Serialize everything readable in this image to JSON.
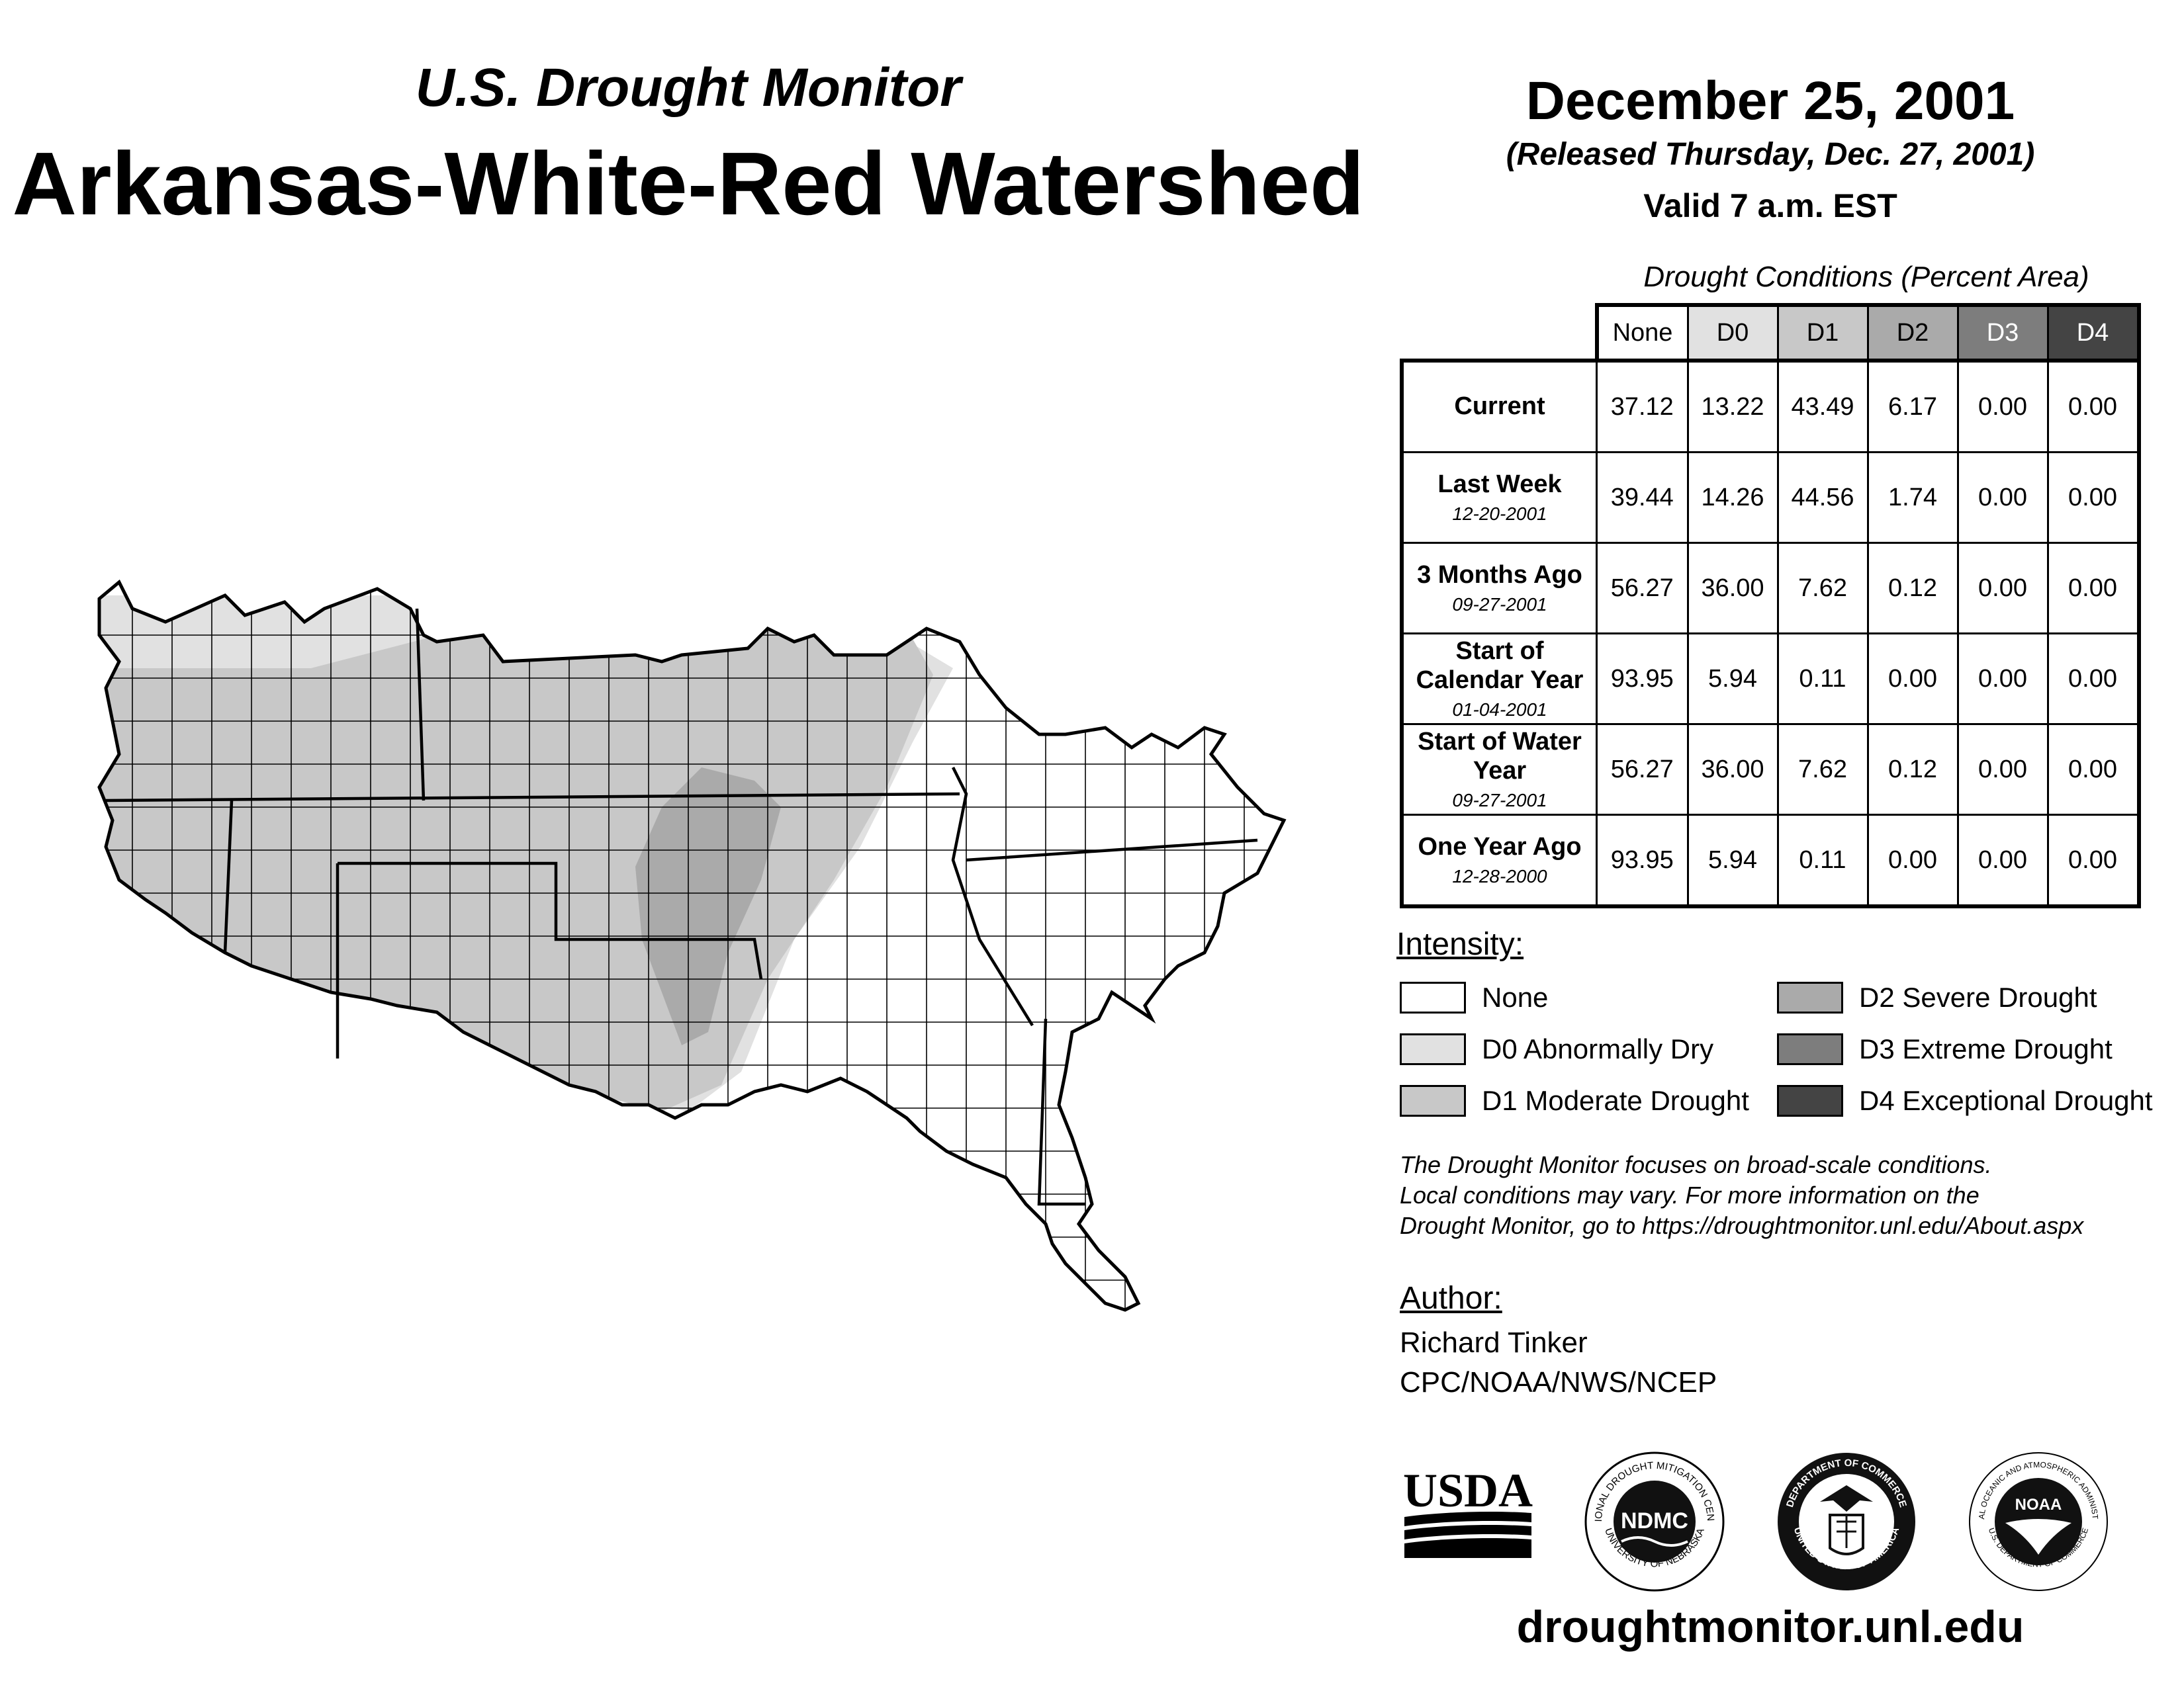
{
  "header": {
    "subtitle": "U.S. Drought Monitor",
    "title": "Arkansas-White-Red Watershed",
    "date": "December 25, 2001",
    "released": "(Released Thursday, Dec. 27, 2001)",
    "valid": "Valid 7 a.m. EST"
  },
  "table": {
    "caption": "Drought Conditions (Percent Area)",
    "columns": [
      "None",
      "D0",
      "D1",
      "D2",
      "D3",
      "D4"
    ],
    "rows": [
      {
        "label": "Current",
        "date": "",
        "values": [
          "37.12",
          "13.22",
          "43.49",
          "6.17",
          "0.00",
          "0.00"
        ]
      },
      {
        "label": "Last Week",
        "date": "12-20-2001",
        "values": [
          "39.44",
          "14.26",
          "44.56",
          "1.74",
          "0.00",
          "0.00"
        ]
      },
      {
        "label": "3 Months Ago",
        "date": "09-27-2001",
        "values": [
          "56.27",
          "36.00",
          "7.62",
          "0.12",
          "0.00",
          "0.00"
        ]
      },
      {
        "label": "Start of Calendar Year",
        "date": "01-04-2001",
        "values": [
          "93.95",
          "5.94",
          "0.11",
          "0.00",
          "0.00",
          "0.00"
        ]
      },
      {
        "label": "Start of Water Year",
        "date": "09-27-2001",
        "values": [
          "56.27",
          "36.00",
          "7.62",
          "0.12",
          "0.00",
          "0.00"
        ]
      },
      {
        "label": "One Year Ago",
        "date": "12-28-2000",
        "values": [
          "93.95",
          "5.94",
          "0.11",
          "0.00",
          "0.00",
          "0.00"
        ]
      }
    ]
  },
  "legend": {
    "title": "Intensity:",
    "items": [
      {
        "label": "None",
        "color": "#ffffff"
      },
      {
        "label": "D0 Abnormally Dry",
        "color": "#e1e1e1"
      },
      {
        "label": "D1 Moderate Drought",
        "color": "#c8c8c8"
      },
      {
        "label": "D2 Severe Drought",
        "color": "#aaaaaa"
      },
      {
        "label": "D3 Extreme Drought",
        "color": "#7d7d7d"
      },
      {
        "label": "D4 Exceptional Drought",
        "color": "#444444"
      }
    ]
  },
  "note": {
    "line1": "The Drought Monitor focuses on broad-scale conditions.",
    "line2": "Local conditions may vary. For more information on the",
    "line3": "Drought Monitor, go to https://droughtmonitor.unl.edu/About.aspx"
  },
  "author": {
    "title": "Author:",
    "name": "Richard Tinker",
    "org": "CPC/NOAA/NWS/NCEP"
  },
  "logos": {
    "usda": "USDA",
    "ndmc": "NDMC",
    "ndmc_ring_top": "NATIONAL DROUGHT MITIGATION CENTER",
    "ndmc_ring_bottom": "UNIVERSITY OF NEBRASKA",
    "doc_ring_top": "DEPARTMENT OF COMMERCE",
    "doc_ring_bottom": "UNITED STATES OF AMERICA",
    "noaa": "NOAA",
    "noaa_ring_top": "NATIONAL OCEANIC AND ATMOSPHERIC ADMINISTRATION",
    "noaa_ring_bottom": "U.S. DEPARTMENT OF COMMERCE"
  },
  "website": "droughtmonitor.unl.edu"
}
